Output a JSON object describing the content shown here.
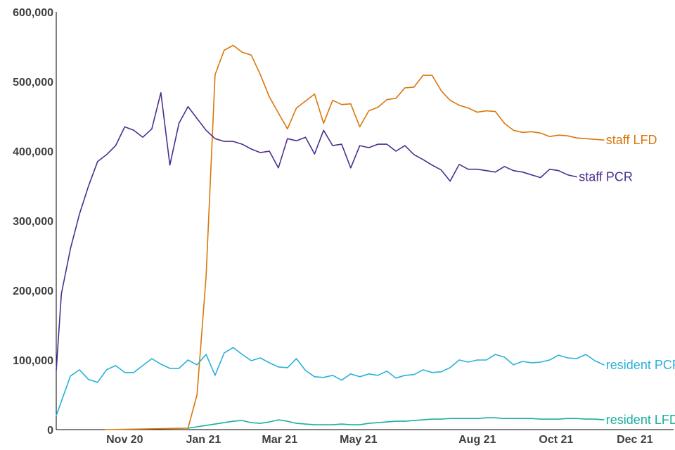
{
  "chart_data": {
    "type": "line",
    "title": "",
    "xlabel": "",
    "ylabel": "",
    "ylim": [
      0,
      600000
    ],
    "xlim": [
      "2020-09-09",
      "2021-12-31"
    ],
    "grid": false,
    "legend": "inline labels at line ends",
    "y_ticks": [
      0,
      100000,
      200000,
      300000,
      400000,
      500000,
      600000
    ],
    "y_tick_labels": [
      "0",
      "100,000",
      "200,000",
      "300,000",
      "400,000",
      "500,000",
      "600,000"
    ],
    "x_ticks": [
      "2020-11-01",
      "2021-01-01",
      "2021-03-01",
      "2021-05-01",
      "2021-08-01",
      "2021-10-01",
      "2021-12-01"
    ],
    "x_tick_labels": [
      "Nov 20",
      "Jan 21",
      "Mar 21",
      "May 21",
      "Aug 21",
      "Oct 21",
      "Dec 21"
    ],
    "series": [
      {
        "name": "staff LFD",
        "color": "#D9770B",
        "x": [
          "2020-10-17",
          "2020-12-20",
          "2020-12-27",
          "2021-01-03",
          "2021-01-10",
          "2021-01-17",
          "2021-01-24",
          "2021-01-31",
          "2021-02-07",
          "2021-02-14",
          "2021-02-21",
          "2021-02-28",
          "2021-03-07",
          "2021-03-14",
          "2021-03-21",
          "2021-03-28",
          "2021-04-04",
          "2021-04-11",
          "2021-04-18",
          "2021-04-25",
          "2021-05-02",
          "2021-05-09",
          "2021-05-16",
          "2021-05-23",
          "2021-05-30",
          "2021-06-06",
          "2021-06-13",
          "2021-06-20",
          "2021-06-27",
          "2021-07-04",
          "2021-07-11",
          "2021-07-18",
          "2021-07-25",
          "2021-08-01",
          "2021-08-08",
          "2021-08-15",
          "2021-08-22",
          "2021-08-29",
          "2021-09-05",
          "2021-09-12",
          "2021-09-19",
          "2021-09-26",
          "2021-10-03",
          "2021-10-10",
          "2021-10-17",
          "2021-10-24",
          "2021-10-31",
          "2021-11-07"
        ],
        "values": [
          0,
          2000,
          50000,
          220000,
          510000,
          545000,
          552000,
          542000,
          538000,
          510000,
          478000,
          455000,
          432000,
          462000,
          472000,
          482000,
          440000,
          473000,
          467000,
          468000,
          435000,
          458000,
          463000,
          474000,
          476000,
          491000,
          492000,
          509000,
          509000,
          487000,
          473000,
          466000,
          462000,
          456000,
          458000,
          457000,
          440000,
          430000,
          427000,
          428000,
          426000,
          421000,
          423000,
          422000,
          419000,
          418000,
          417000,
          416000
        ]
      },
      {
        "name": "staff PCR",
        "color": "#4B2D8F",
        "x": [
          "2020-09-09",
          "2020-09-13",
          "2020-09-20",
          "2020-09-27",
          "2020-10-04",
          "2020-10-11",
          "2020-10-18",
          "2020-10-25",
          "2020-11-01",
          "2020-11-08",
          "2020-11-15",
          "2020-11-22",
          "2020-11-29",
          "2020-12-06",
          "2020-12-13",
          "2020-12-20",
          "2020-12-27",
          "2021-01-03",
          "2021-01-10",
          "2021-01-17",
          "2021-01-24",
          "2021-01-31",
          "2021-02-07",
          "2021-02-14",
          "2021-02-21",
          "2021-02-28",
          "2021-03-07",
          "2021-03-14",
          "2021-03-21",
          "2021-03-28",
          "2021-04-04",
          "2021-04-11",
          "2021-04-18",
          "2021-04-25",
          "2021-05-02",
          "2021-05-09",
          "2021-05-16",
          "2021-05-23",
          "2021-05-30",
          "2021-06-06",
          "2021-06-13",
          "2021-06-20",
          "2021-06-27",
          "2021-07-04",
          "2021-07-11",
          "2021-07-18",
          "2021-07-25",
          "2021-08-01",
          "2021-08-08",
          "2021-08-15",
          "2021-08-22",
          "2021-08-29",
          "2021-09-05",
          "2021-09-12",
          "2021-09-19",
          "2021-09-26",
          "2021-10-03",
          "2021-10-10",
          "2021-10-17"
        ],
        "values": [
          85000,
          195000,
          260000,
          310000,
          350000,
          385000,
          395000,
          408000,
          435000,
          430000,
          420000,
          432000,
          484000,
          380000,
          440000,
          464000,
          447000,
          430000,
          418000,
          414000,
          414000,
          410000,
          403000,
          398000,
          400000,
          376000,
          418000,
          415000,
          420000,
          396000,
          430000,
          408000,
          410000,
          376000,
          408000,
          405000,
          410000,
          410000,
          400000,
          408000,
          395000,
          388000,
          380000,
          373000,
          357000,
          381000,
          374000,
          374000,
          372000,
          370000,
          378000,
          372000,
          370000,
          366000,
          362000,
          374000,
          372000,
          366000,
          363000
        ]
      },
      {
        "name": "resident PCR",
        "color": "#2AB0DC",
        "x": [
          "2020-09-09",
          "2020-09-20",
          "2020-09-27",
          "2020-10-04",
          "2020-10-11",
          "2020-10-18",
          "2020-10-25",
          "2020-11-01",
          "2020-11-08",
          "2020-11-15",
          "2020-11-22",
          "2020-11-29",
          "2020-12-06",
          "2020-12-13",
          "2020-12-20",
          "2020-12-27",
          "2021-01-03",
          "2021-01-10",
          "2021-01-17",
          "2021-01-24",
          "2021-01-31",
          "2021-02-07",
          "2021-02-14",
          "2021-02-21",
          "2021-02-28",
          "2021-03-07",
          "2021-03-14",
          "2021-03-21",
          "2021-03-28",
          "2021-04-04",
          "2021-04-11",
          "2021-04-18",
          "2021-04-25",
          "2021-05-02",
          "2021-05-09",
          "2021-05-16",
          "2021-05-23",
          "2021-05-30",
          "2021-06-06",
          "2021-06-13",
          "2021-06-20",
          "2021-06-27",
          "2021-07-04",
          "2021-07-11",
          "2021-07-18",
          "2021-07-25",
          "2021-08-01",
          "2021-08-08",
          "2021-08-15",
          "2021-08-22",
          "2021-08-29",
          "2021-09-05",
          "2021-09-12",
          "2021-09-19",
          "2021-09-26",
          "2021-10-03",
          "2021-10-10",
          "2021-10-17",
          "2021-10-24",
          "2021-10-31",
          "2021-11-07"
        ],
        "values": [
          20000,
          77000,
          86000,
          72000,
          68000,
          86000,
          92000,
          82000,
          82000,
          92000,
          102000,
          94000,
          88000,
          88000,
          100000,
          93000,
          108000,
          78000,
          110000,
          118000,
          108000,
          99000,
          103000,
          96000,
          90000,
          89000,
          102000,
          85000,
          76000,
          75000,
          78000,
          71000,
          80000,
          76000,
          80000,
          78000,
          84000,
          74000,
          78000,
          79000,
          86000,
          82000,
          83000,
          89000,
          100000,
          97000,
          100000,
          100000,
          108000,
          104000,
          93000,
          98000,
          96000,
          97000,
          100000,
          107000,
          103000,
          102000,
          108000,
          99000,
          93000
        ]
      },
      {
        "name": "resident LFD",
        "color": "#1AAE9F",
        "x": [
          "2020-12-20",
          "2020-12-27",
          "2021-01-03",
          "2021-01-10",
          "2021-01-17",
          "2021-01-24",
          "2021-01-31",
          "2021-02-07",
          "2021-02-14",
          "2021-02-21",
          "2021-02-28",
          "2021-03-07",
          "2021-03-14",
          "2021-03-21",
          "2021-03-28",
          "2021-04-04",
          "2021-04-11",
          "2021-04-18",
          "2021-04-25",
          "2021-05-02",
          "2021-05-09",
          "2021-05-16",
          "2021-05-23",
          "2021-05-30",
          "2021-06-06",
          "2021-06-13",
          "2021-06-20",
          "2021-06-27",
          "2021-07-04",
          "2021-07-11",
          "2021-07-18",
          "2021-07-25",
          "2021-08-01",
          "2021-08-08",
          "2021-08-15",
          "2021-08-22",
          "2021-08-29",
          "2021-09-05",
          "2021-09-12",
          "2021-09-19",
          "2021-09-26",
          "2021-10-03",
          "2021-10-10",
          "2021-10-17",
          "2021-10-24",
          "2021-10-31",
          "2021-11-07"
        ],
        "values": [
          2000,
          4000,
          6000,
          8000,
          10000,
          12000,
          13000,
          10000,
          9000,
          11000,
          14000,
          12000,
          9000,
          8000,
          7000,
          7000,
          7000,
          8000,
          7000,
          7000,
          9000,
          10000,
          11000,
          12000,
          12000,
          13000,
          14000,
          15000,
          15000,
          16000,
          16000,
          16000,
          16000,
          17000,
          17000,
          16000,
          16000,
          16000,
          16000,
          15000,
          15000,
          15000,
          16000,
          16000,
          15000,
          15000,
          14000
        ]
      }
    ]
  }
}
